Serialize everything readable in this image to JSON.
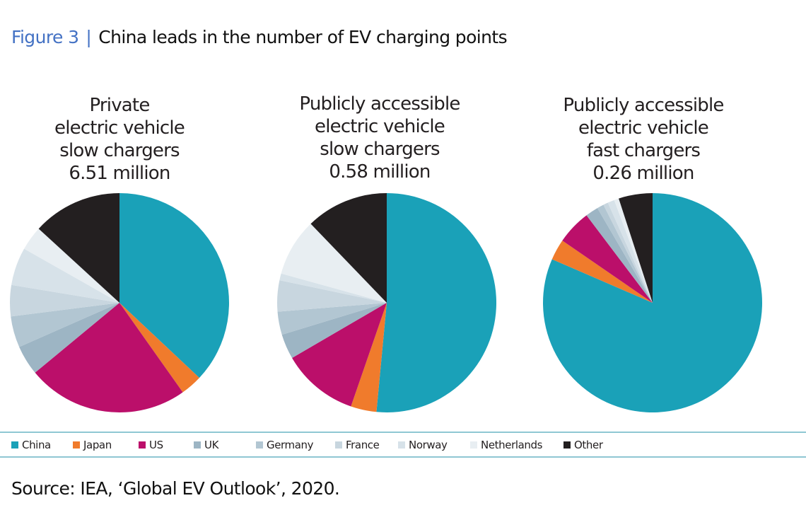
{
  "figure": {
    "number_label": "Figure  3",
    "separator": "|",
    "title": "China leads in the number of EV charging points"
  },
  "source": "Source: IEA, ‘Global EV Outlook’, 2020.",
  "chart_data": {
    "type": "pie",
    "categories": [
      "China",
      "Japan",
      "US",
      "UK",
      "Germany",
      "France",
      "Norway",
      "Netherlands",
      "Other"
    ],
    "colors": [
      "#1aa1b8",
      "#f07b2c",
      "#bb0f6a",
      "#9db5c4",
      "#b2c6d2",
      "#c8d6df",
      "#d7e2e9",
      "#e8eef2",
      "#231f20"
    ],
    "unit": "percent share",
    "legend_position": "bottom",
    "charts": [
      {
        "title_lines": [
          "Private",
          "electric vehicle",
          "slow chargers",
          "6.51 million"
        ],
        "total": "6.51 million",
        "values": [
          37.0,
          3.2,
          23.8,
          4.4,
          4.6,
          4.6,
          5.6,
          3.6,
          13.2
        ]
      },
      {
        "title_lines": [
          "Publicly accessible",
          "electric vehicle",
          "slow chargers",
          "0.58 million"
        ],
        "total": "0.58 million",
        "values": [
          51.5,
          3.8,
          11.3,
          3.7,
          3.4,
          4.6,
          1.0,
          8.5,
          12.2
        ]
      },
      {
        "title_lines": [
          "Publicly accessible",
          "electric vehicle",
          "fast chargers",
          "0.26 million"
        ],
        "total": "0.26 million",
        "values": [
          81.5,
          3.1,
          5.1,
          1.9,
          1.0,
          0.7,
          1.0,
          0.7,
          5.0
        ]
      }
    ]
  }
}
